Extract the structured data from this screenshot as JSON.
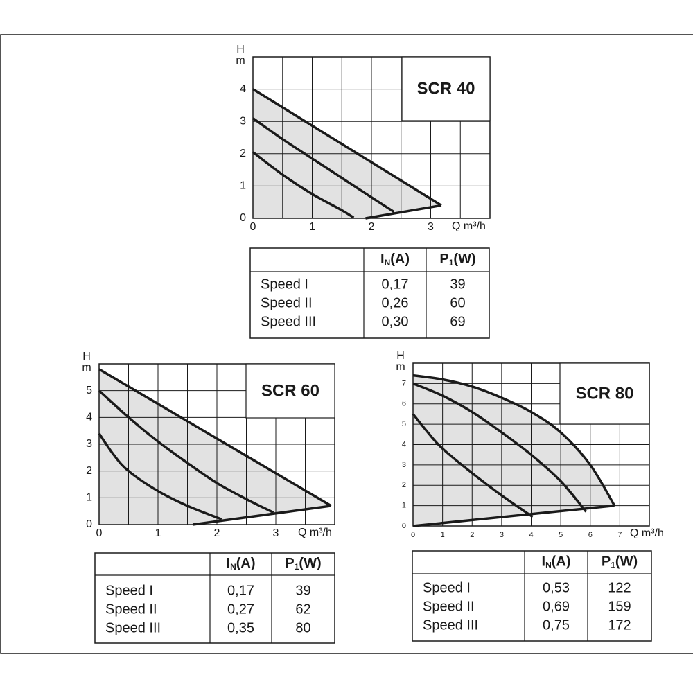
{
  "chart_data": [
    {
      "type": "line",
      "title": "SCR 40",
      "ylabel": "H",
      "yunit": "m",
      "xlabel": "Q m³/h",
      "xlim": [
        0,
        4
      ],
      "ylim": [
        0,
        5
      ],
      "xticks": [
        0,
        1,
        2,
        3
      ],
      "yticks": [
        0,
        1,
        2,
        3,
        4
      ],
      "xgrid": [
        0.5,
        1,
        1.5,
        2,
        2.5,
        3,
        3.5
      ],
      "ygrid": [
        1,
        2,
        3,
        4
      ],
      "grid": true,
      "fill": "#e2e2e2",
      "color": "#1a1a1a",
      "curves": [
        {
          "x": [
            0,
            0.5,
            1,
            1.5,
            1.7
          ],
          "y": [
            2.05,
            1.35,
            0.75,
            0.25,
            0.02
          ]
        },
        {
          "x": [
            0,
            0.5,
            1,
            1.5,
            2,
            2.38
          ],
          "y": [
            3.1,
            2.45,
            1.85,
            1.25,
            0.65,
            0.2
          ]
        },
        {
          "x": [
            0,
            3.18
          ],
          "y": [
            4,
            0.4
          ]
        },
        {
          "x": [
            3.18,
            1.9
          ],
          "y": [
            0.4,
            0
          ]
        }
      ],
      "table": {
        "columns": [
          {
            "main": "I",
            "sub": "N",
            "unit": "(A)"
          },
          {
            "main": "P",
            "sub": "1",
            "unit": "(W)"
          }
        ],
        "rows": [
          [
            "Speed I",
            "0,17",
            "39"
          ],
          [
            "Speed II",
            "0,26",
            "60"
          ],
          [
            "Speed III",
            "0,30",
            "69"
          ]
        ]
      }
    },
    {
      "type": "line",
      "title": "SCR 60",
      "ylabel": "H",
      "yunit": "m",
      "xlabel": "Q m³/h",
      "xlim": [
        0,
        4
      ],
      "ylim": [
        0,
        6
      ],
      "xticks": [
        0,
        1,
        2,
        3
      ],
      "yticks": [
        0,
        1,
        2,
        3,
        4,
        5
      ],
      "xgrid": [
        0.5,
        1,
        1.5,
        2,
        2.5,
        3,
        3.5
      ],
      "ygrid": [
        1,
        2,
        3,
        4,
        5
      ],
      "grid": true,
      "fill": "#e2e2e2",
      "color": "#1a1a1a",
      "curves": [
        {
          "x": [
            0,
            0.25,
            0.5,
            1,
            1.5,
            2.08
          ],
          "y": [
            3.4,
            2.6,
            2.0,
            1.25,
            0.7,
            0.2
          ]
        },
        {
          "x": [
            0,
            0.5,
            1,
            1.5,
            2,
            2.5,
            2.96
          ],
          "y": [
            5,
            4,
            3.1,
            2.3,
            1.55,
            0.95,
            0.45
          ]
        },
        {
          "x": [
            0,
            3.94
          ],
          "y": [
            5.8,
            0.7
          ]
        },
        {
          "x": [
            3.94,
            1.59
          ],
          "y": [
            0.7,
            0
          ]
        }
      ],
      "table": {
        "columns": [
          {
            "main": "I",
            "sub": "N",
            "unit": "(A)"
          },
          {
            "main": "P",
            "sub": "1",
            "unit": "(W)"
          }
        ],
        "rows": [
          [
            "Speed I",
            "0,17",
            "39"
          ],
          [
            "Speed II",
            "0,27",
            "62"
          ],
          [
            "Speed III",
            "0,35",
            "80"
          ]
        ]
      }
    },
    {
      "type": "line",
      "title": "SCR 80",
      "ylabel": "H",
      "yunit": "m",
      "xlabel": "Q m³/h",
      "xlim": [
        0,
        8
      ],
      "ylim": [
        0,
        8
      ],
      "xticks": [
        0,
        1,
        2,
        3,
        4,
        5,
        6,
        7
      ],
      "yticks": [
        0,
        1,
        2,
        3,
        4,
        5,
        6,
        7
      ],
      "xgrid": [
        1,
        2,
        3,
        4,
        5,
        6,
        7
      ],
      "ygrid": [
        1,
        2,
        3,
        4,
        5,
        6,
        7
      ],
      "grid": true,
      "fill": "#e2e2e2",
      "color": "#1a1a1a",
      "curves": [
        {
          "x": [
            0,
            0.5,
            1,
            2,
            3,
            4.05
          ],
          "y": [
            5.5,
            4.6,
            3.8,
            2.6,
            1.5,
            0.45
          ]
        },
        {
          "x": [
            0,
            1,
            2,
            3,
            4,
            5,
            5.86
          ],
          "y": [
            7,
            6.4,
            5.6,
            4.6,
            3.5,
            2.2,
            0.7
          ]
        },
        {
          "x": [
            0,
            1,
            2,
            3,
            4,
            5,
            6,
            6.82
          ],
          "y": [
            7.4,
            7.2,
            6.85,
            6.3,
            5.6,
            4.6,
            3.0,
            1.0
          ]
        },
        {
          "x": [
            6.82,
            0
          ],
          "y": [
            1.0,
            0
          ]
        }
      ],
      "table": {
        "columns": [
          {
            "main": "I",
            "sub": "N",
            "unit": "(A)"
          },
          {
            "main": "P",
            "sub": "1",
            "unit": "(W)"
          }
        ],
        "rows": [
          [
            "Speed I",
            "0,53",
            "122"
          ],
          [
            "Speed II",
            "0,69",
            "159"
          ],
          [
            "Speed III",
            "0,75",
            "172"
          ]
        ]
      }
    }
  ]
}
